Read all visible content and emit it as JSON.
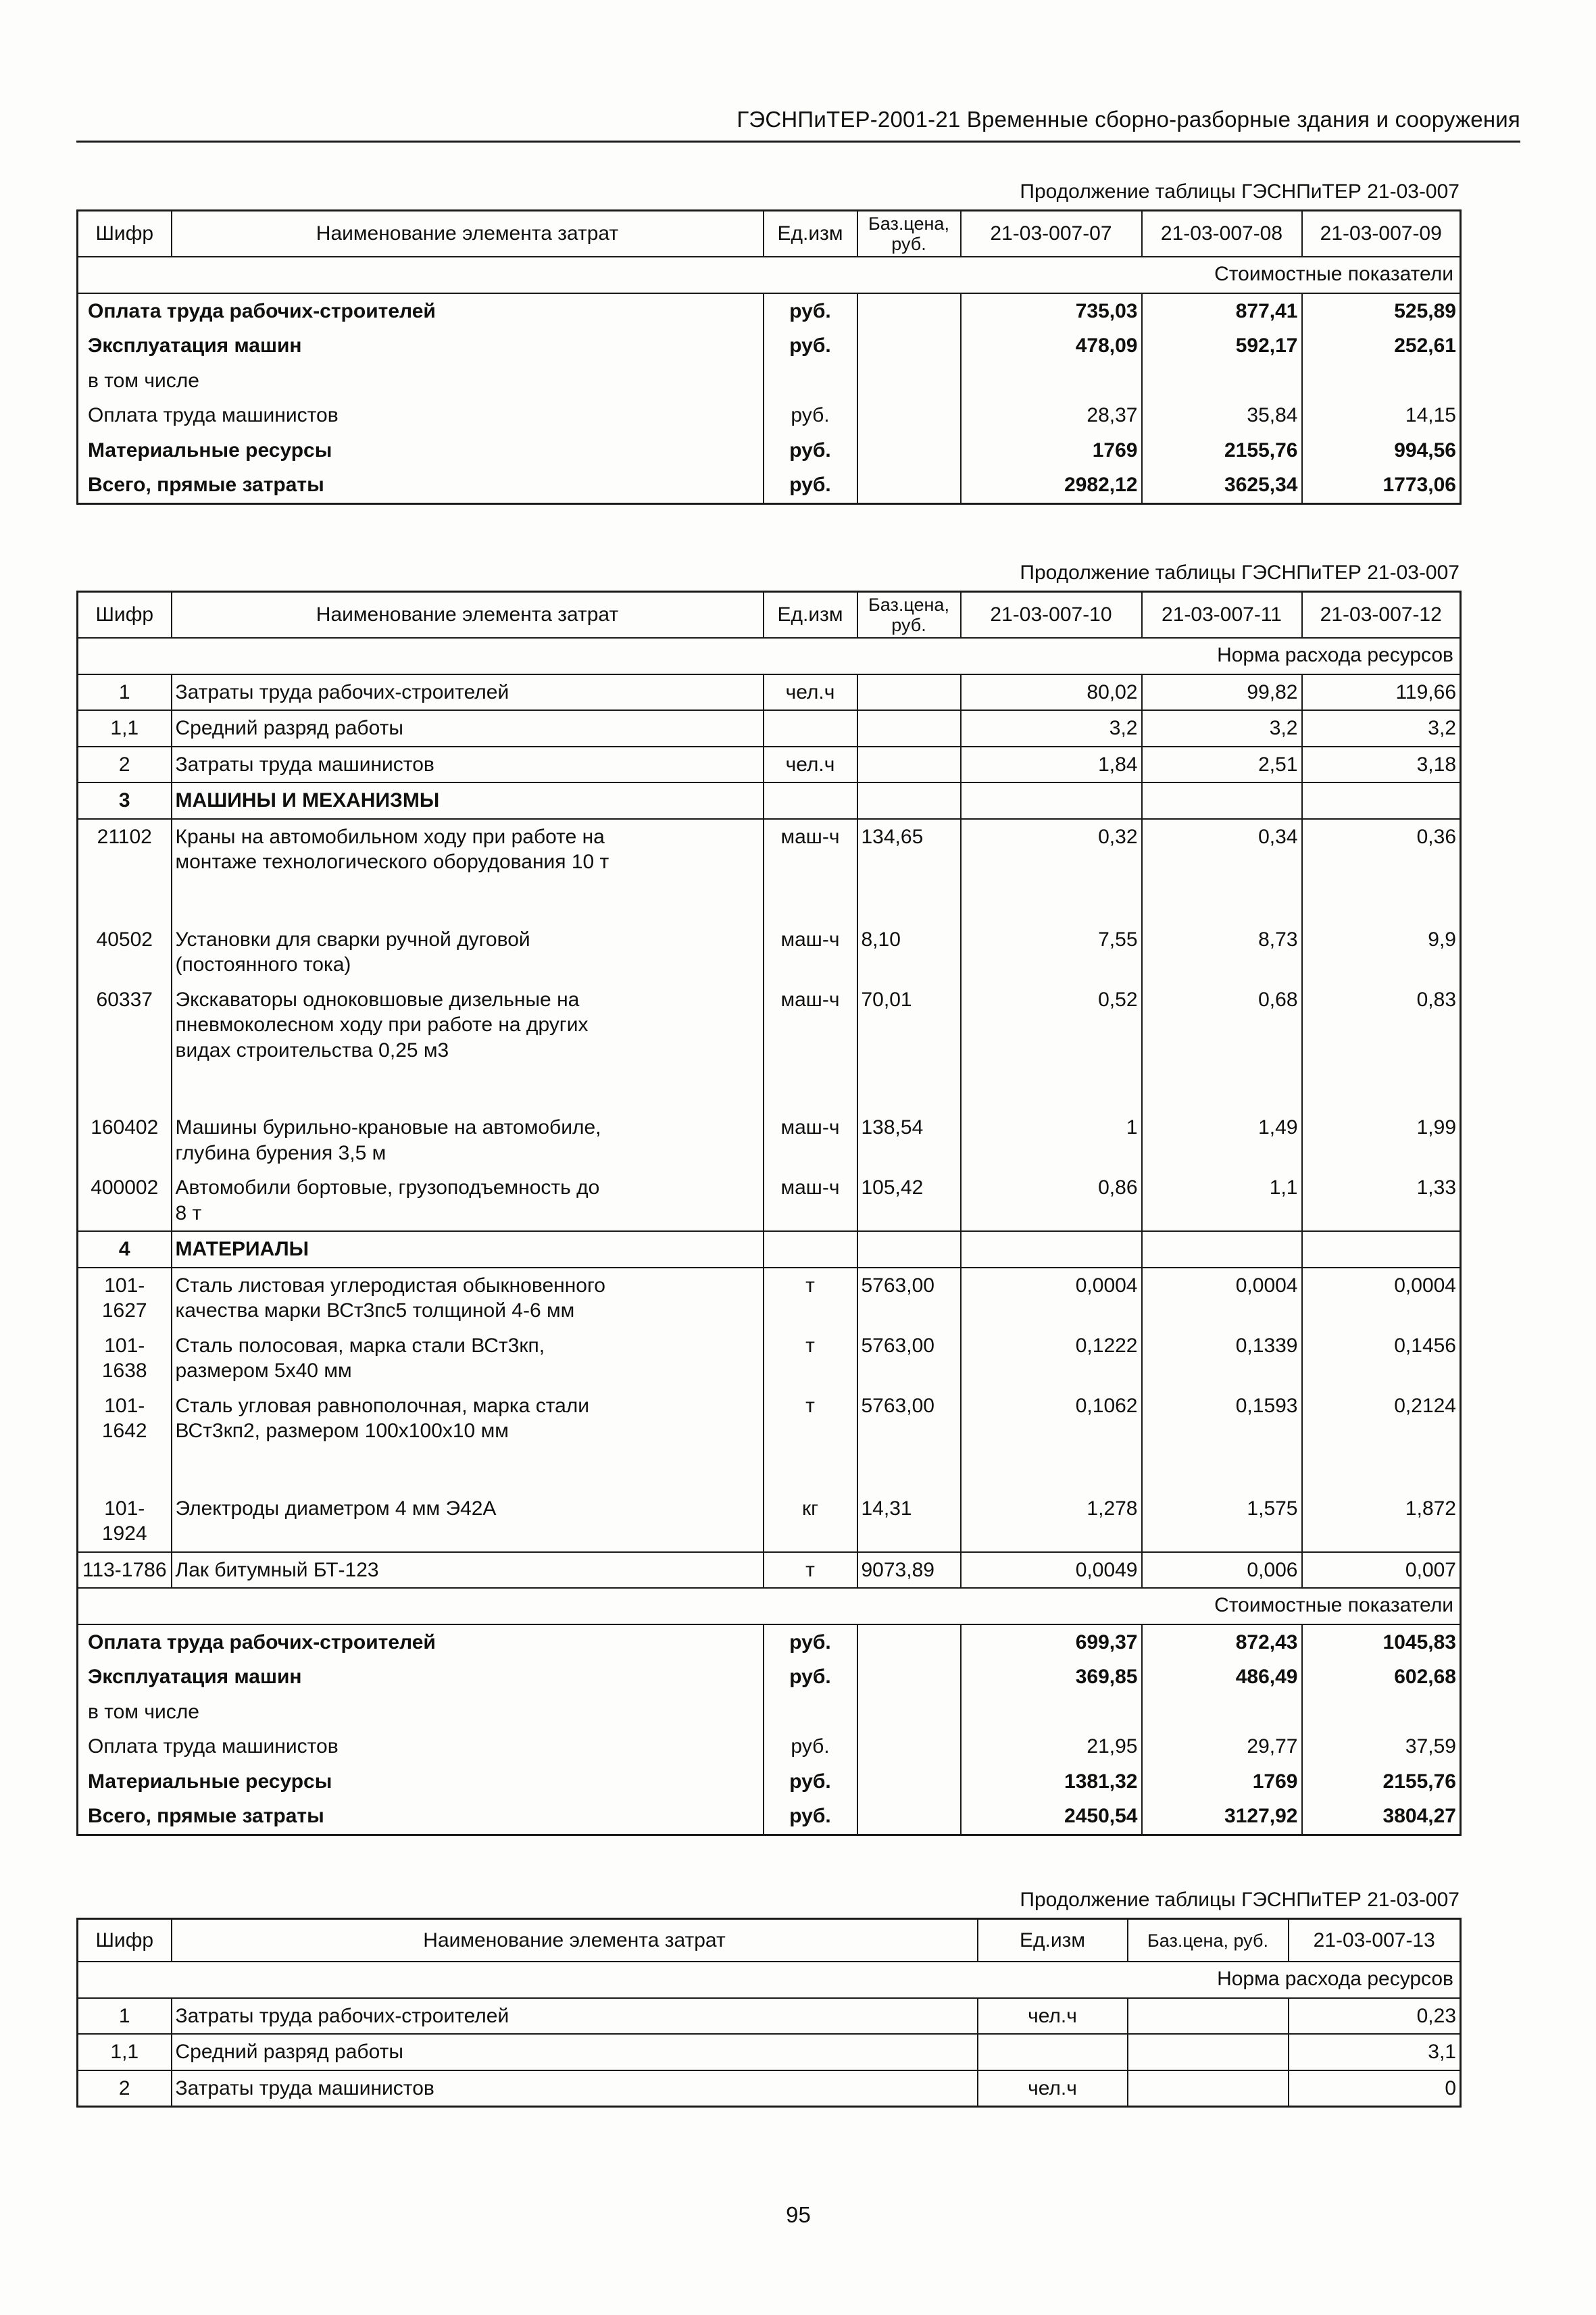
{
  "page": {
    "header": "ГЭСНПиТЕР-2001-21 Временные сборно-разборные здания и сооружения",
    "page_number": "95"
  },
  "tables": [
    {
      "caption": "Продолжение таблицы ГЭСНПиТЕР 21-03-007",
      "headers": [
        "Шифр",
        "Наименование элемента затрат",
        "Ед.изм",
        "Баз.цена, руб.",
        "21-03-007-07",
        "21-03-007-08",
        "21-03-007-09"
      ],
      "sections": [
        {
          "band": "Стоимостные показатели"
        },
        {
          "rows": [
            {
              "type": "cost",
              "name": "Оплата труда рабочих-строителей",
              "unit": "руб.",
              "base": "",
              "values": [
                "735,03",
                "877,41",
                "525,89"
              ],
              "bold": true
            },
            {
              "type": "cost",
              "name": "Эксплуатация машин",
              "unit": "руб.",
              "base": "",
              "values": [
                "478,09",
                "592,17",
                "252,61"
              ],
              "bold": true
            },
            {
              "type": "cost",
              "name": "в том числе",
              "unit": "",
              "base": "",
              "values": [
                "",
                "",
                ""
              ]
            },
            {
              "type": "cost",
              "name": "Оплата труда машинистов",
              "unit": "руб.",
              "base": "",
              "values": [
                "28,37",
                "35,84",
                "14,15"
              ]
            },
            {
              "type": "cost",
              "name": "Материальные ресурсы",
              "unit": "руб.",
              "base": "",
              "values": [
                "1769",
                "2155,76",
                "994,56"
              ],
              "bold": true
            },
            {
              "type": "cost",
              "name": "Всего, прямые затраты",
              "unit": "руб.",
              "base": "",
              "values": [
                "2982,12",
                "3625,34",
                "1773,06"
              ],
              "bold": true
            }
          ]
        }
      ]
    },
    {
      "caption": "Продолжение таблицы ГЭСНПиТЕР 21-03-007",
      "headers": [
        "Шифр",
        "Наименование элемента затрат",
        "Ед.изм",
        "Баз.цена, руб.",
        "21-03-007-10",
        "21-03-007-11",
        "21-03-007-12"
      ],
      "sections": [
        {
          "band": "Норма расхода ресурсов"
        },
        {
          "rows": [
            {
              "type": "item",
              "code": "1",
              "name": "Затраты труда рабочих-строителей",
              "unit": "чел.ч",
              "base": "",
              "values": [
                "80,02",
                "99,82",
                "119,66"
              ],
              "lined": true
            },
            {
              "type": "item",
              "code": "1,1",
              "name": "Средний разряд работы",
              "unit": "",
              "base": "",
              "values": [
                "3,2",
                "3,2",
                "3,2"
              ],
              "lined": true
            },
            {
              "type": "item",
              "code": "2",
              "name": "Затраты труда машинистов",
              "unit": "чел.ч",
              "base": "",
              "values": [
                "1,84",
                "2,51",
                "3,18"
              ],
              "lined": true
            },
            {
              "type": "section",
              "code": "3",
              "name": "МАШИНЫ И МЕХАНИЗМЫ",
              "lined": true
            },
            {
              "type": "item",
              "code": "21102",
              "name": "Краны на автомобильном ходу при работе на монтаже технологического оборудования 10 т",
              "unit": "маш-ч",
              "base": "134,65",
              "values": [
                "0,32",
                "0,34",
                "0,36"
              ],
              "gap": true
            },
            {
              "type": "item",
              "code": "40502",
              "name": "Установки для сварки ручной дуговой (постоянного тока)",
              "unit": "маш-ч",
              "base": "8,10",
              "values": [
                "7,55",
                "8,73",
                "9,9"
              ]
            },
            {
              "type": "item",
              "code": "60337",
              "name": "Экскаваторы одноковшовые дизельные на пневмоколесном ходу при работе на других видах строительства 0,25 м3",
              "unit": "маш-ч",
              "base": "70,01",
              "values": [
                "0,52",
                "0,68",
                "0,83"
              ],
              "gap": true
            },
            {
              "type": "item",
              "code": "160402",
              "name": "Машины бурильно-крановые на автомобиле, глубина бурения 3,5 м",
              "unit": "маш-ч",
              "base": "138,54",
              "values": [
                "1",
                "1,49",
                "1,99"
              ]
            },
            {
              "type": "item",
              "code": "400002",
              "name": "Автомобили бортовые, грузоподъемность до 8 т",
              "unit": "маш-ч",
              "base": "105,42",
              "values": [
                "0,86",
                "1,1",
                "1,33"
              ],
              "lined": true
            },
            {
              "type": "section",
              "code": "4",
              "name": "МАТЕРИАЛЫ",
              "lined": true
            },
            {
              "type": "item",
              "code": "101-1627",
              "name": "Сталь листовая углеродистая обыкновенного качества марки ВСт3пс5 толщиной 4-6 мм",
              "unit": "т",
              "base": "5763,00",
              "values": [
                "0,0004",
                "0,0004",
                "0,0004"
              ]
            },
            {
              "type": "item",
              "code": "101-1638",
              "name": "Сталь полосовая, марка стали ВСт3кп, размером 5х40 мм",
              "unit": "т",
              "base": "5763,00",
              "values": [
                "0,1222",
                "0,1339",
                "0,1456"
              ]
            },
            {
              "type": "item",
              "code": "101-1642",
              "name": "Сталь угловая равнополочная, марка стали ВСт3кп2, размером 100х100х10 мм",
              "unit": "т",
              "base": "5763,00",
              "values": [
                "0,1062",
                "0,1593",
                "0,2124"
              ],
              "gap": true
            },
            {
              "type": "item",
              "code": "101-1924",
              "name": "Электроды диаметром 4 мм Э42А",
              "unit": "кг",
              "base": "14,31",
              "values": [
                "1,278",
                "1,575",
                "1,872"
              ],
              "lined": true
            },
            {
              "type": "item",
              "code": "113-1786",
              "name": "Лак битумный БТ-123",
              "unit": "т",
              "base": "9073,89",
              "values": [
                "0,0049",
                "0,006",
                "0,007"
              ],
              "lined": true
            }
          ]
        },
        {
          "band": "Стоимостные показатели"
        },
        {
          "rows": [
            {
              "type": "cost",
              "name": "Оплата труда рабочих-строителей",
              "unit": "руб.",
              "base": "",
              "values": [
                "699,37",
                "872,43",
                "1045,83"
              ],
              "bold": true
            },
            {
              "type": "cost",
              "name": "Эксплуатация машин",
              "unit": "руб.",
              "base": "",
              "values": [
                "369,85",
                "486,49",
                "602,68"
              ],
              "bold": true
            },
            {
              "type": "cost",
              "name": "в том числе",
              "unit": "",
              "base": "",
              "values": [
                "",
                "",
                ""
              ]
            },
            {
              "type": "cost",
              "name": "Оплата труда машинистов",
              "unit": "руб.",
              "base": "",
              "values": [
                "21,95",
                "29,77",
                "37,59"
              ]
            },
            {
              "type": "cost",
              "name": "Материальные ресурсы",
              "unit": "руб.",
              "base": "",
              "values": [
                "1381,32",
                "1769",
                "2155,76"
              ],
              "bold": true
            },
            {
              "type": "cost",
              "name": "Всего, прямые затраты",
              "unit": "руб.",
              "base": "",
              "values": [
                "2450,54",
                "3127,92",
                "3804,27"
              ],
              "bold": true
            }
          ]
        }
      ]
    },
    {
      "caption": "Продолжение таблицы ГЭСНПиТЕР 21-03-007",
      "headers": [
        "Шифр",
        "Наименование элемента затрат",
        "Ед.изм",
        "Баз.цена, руб.",
        "21-03-007-13"
      ],
      "sections": [
        {
          "band": "Норма расхода ресурсов"
        },
        {
          "rows": [
            {
              "type": "item",
              "code": "1",
              "name": "Затраты труда рабочих-строителей",
              "unit": "чел.ч",
              "base": "",
              "values": [
                "0,23"
              ],
              "lined": true
            },
            {
              "type": "item",
              "code": "1,1",
              "name": "Средний разряд работы",
              "unit": "",
              "base": "",
              "values": [
                "3,1"
              ],
              "lined": true
            },
            {
              "type": "item",
              "code": "2",
              "name": "Затраты труда машинистов",
              "unit": "чел.ч",
              "base": "",
              "values": [
                "0"
              ],
              "lined": true
            }
          ]
        }
      ]
    }
  ]
}
